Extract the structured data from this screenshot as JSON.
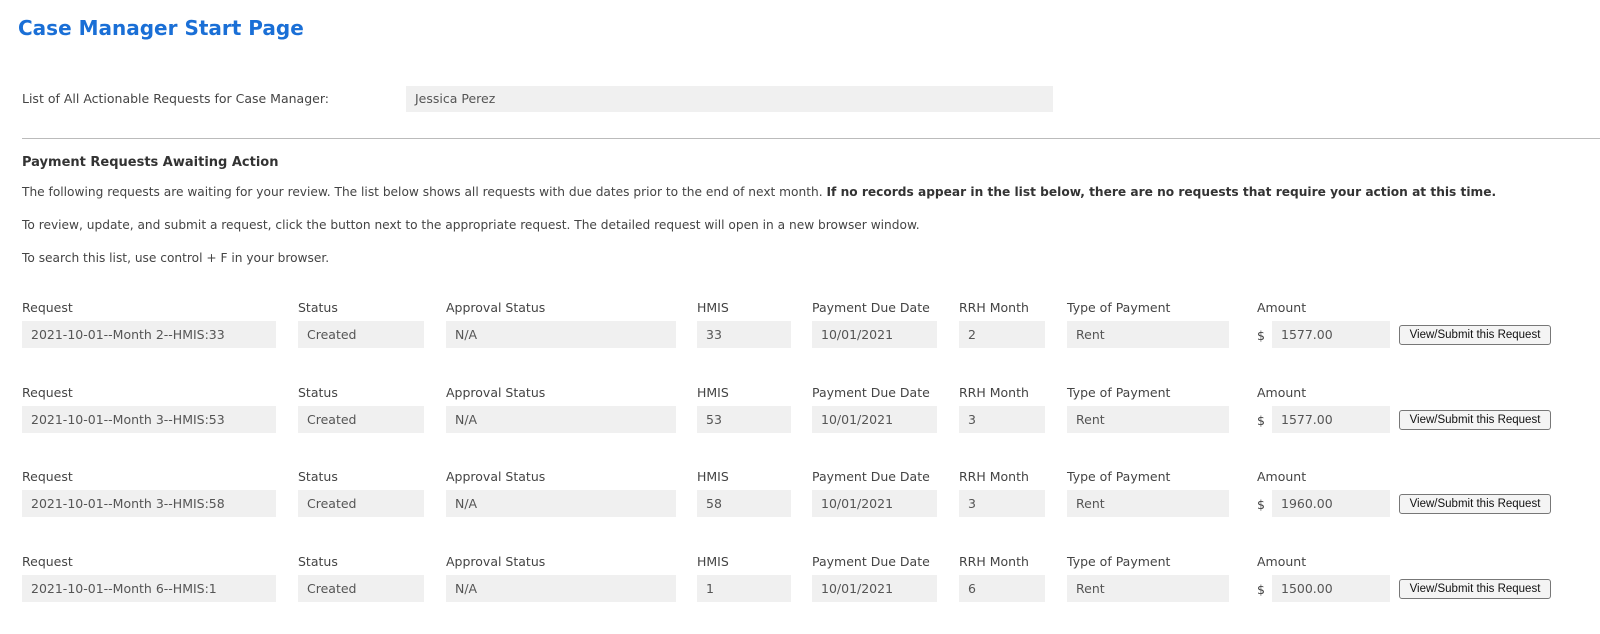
{
  "page_title": "Case Manager Start Page",
  "case_manager": {
    "label": "List of All Actionable Requests for Case Manager:",
    "value": "Jessica Perez"
  },
  "section": {
    "title": "Payment Requests Awaiting Action",
    "intro_normal": "The following requests are waiting for your review. The list below shows all requests with due dates prior to the end of next month. ",
    "intro_bold": "If no records appear in the list below, there are no requests that require your action at this time.",
    "instruction": "To review, update, and submit a request, click the button next to the appropriate request. The detailed request will open in a new browser window.",
    "search_tip": "To search this list, use control + F in your browser."
  },
  "columns": {
    "request": "Request",
    "status": "Status",
    "approval": "Approval Status",
    "hmis": "HMIS",
    "due": "Payment Due Date",
    "rrh": "RRH Month",
    "type": "Type of Payment",
    "amount": "Amount",
    "currency": "$",
    "button": "View/Submit this Request"
  },
  "rows": [
    {
      "request": "2021-10-01--Month 2--HMIS:33",
      "status": "Created",
      "approval": "N/A",
      "hmis": "33",
      "due": "10/01/2021",
      "rrh": "2",
      "type": "Rent",
      "amount": "1577.00"
    },
    {
      "request": "2021-10-01--Month 3--HMIS:53",
      "status": "Created",
      "approval": "N/A",
      "hmis": "53",
      "due": "10/01/2021",
      "rrh": "3",
      "type": "Rent",
      "amount": "1577.00"
    },
    {
      "request": "2021-10-01--Month 3--HMIS:58",
      "status": "Created",
      "approval": "N/A",
      "hmis": "58",
      "due": "10/01/2021",
      "rrh": "3",
      "type": "Rent",
      "amount": "1960.00"
    },
    {
      "request": "2021-10-01--Month 6--HMIS:1",
      "status": "Created",
      "approval": "N/A",
      "hmis": "1",
      "due": "10/01/2021",
      "rrh": "6",
      "type": "Rent",
      "amount": "1500.00"
    }
  ]
}
